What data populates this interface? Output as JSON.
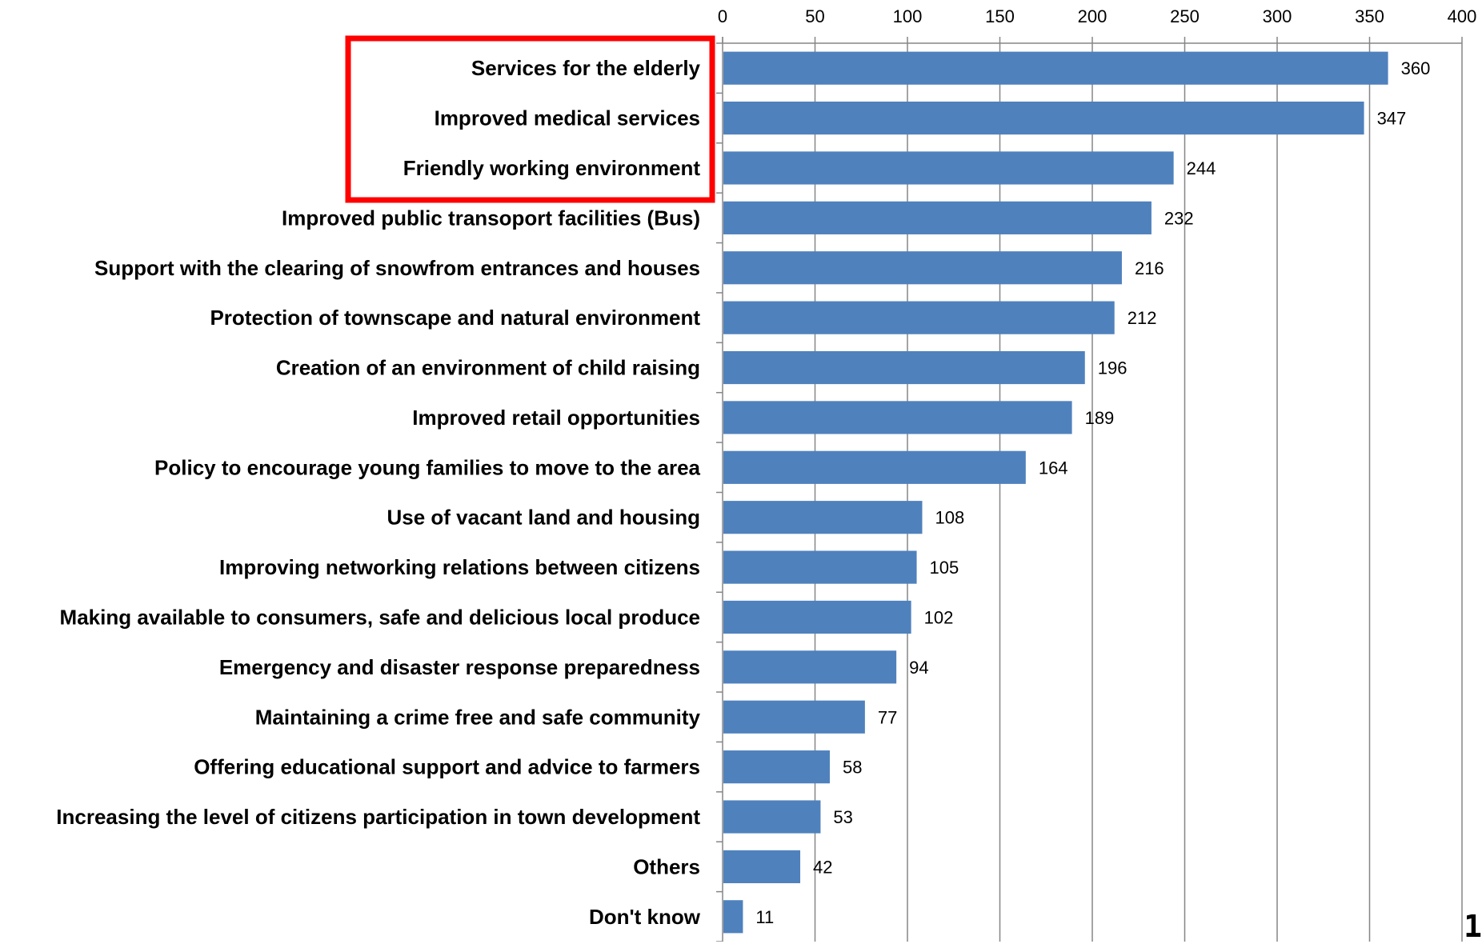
{
  "page_number": "1",
  "colors": {
    "bar": "#4f81bd",
    "grid": "#868686",
    "axis": "#868686",
    "highlight_box": "#ff0000"
  },
  "highlight": {
    "description_categories": [
      "Services for the elderly",
      "Improved medical services",
      "Friendly working environment"
    ]
  },
  "chart_data": {
    "type": "bar",
    "orientation": "horizontal",
    "title": "",
    "xlabel": "",
    "ylabel": "",
    "xlim": [
      0,
      400
    ],
    "x_ticks": [
      0,
      50,
      100,
      150,
      200,
      250,
      300,
      350,
      400
    ],
    "x_axis_position": "top",
    "grid": true,
    "legend": "none",
    "categories": [
      "Services for the elderly",
      "Improved medical services",
      "Friendly working environment",
      "Improved public transoport facilities (Bus)",
      "Support with the clearing of snowfrom entrances and houses",
      "Protection of townscape and natural environment",
      "Creation of an environment of child raising",
      "Improved retail opportunities",
      "Policy to encourage young families to move to the area",
      "Use of vacant land and housing",
      "Improving networking relations between citizens",
      "Making available to consumers, safe and delicious local produce",
      "Emergency and disaster response preparedness",
      "Maintaining a crime free and safe community",
      "Offering educational support and advice to farmers",
      "Increasing the level of citizens participation in town development",
      "Others",
      "Don't know"
    ],
    "values": [
      360,
      347,
      244,
      232,
      216,
      212,
      196,
      189,
      164,
      108,
      105,
      102,
      94,
      77,
      58,
      53,
      42,
      11
    ]
  }
}
